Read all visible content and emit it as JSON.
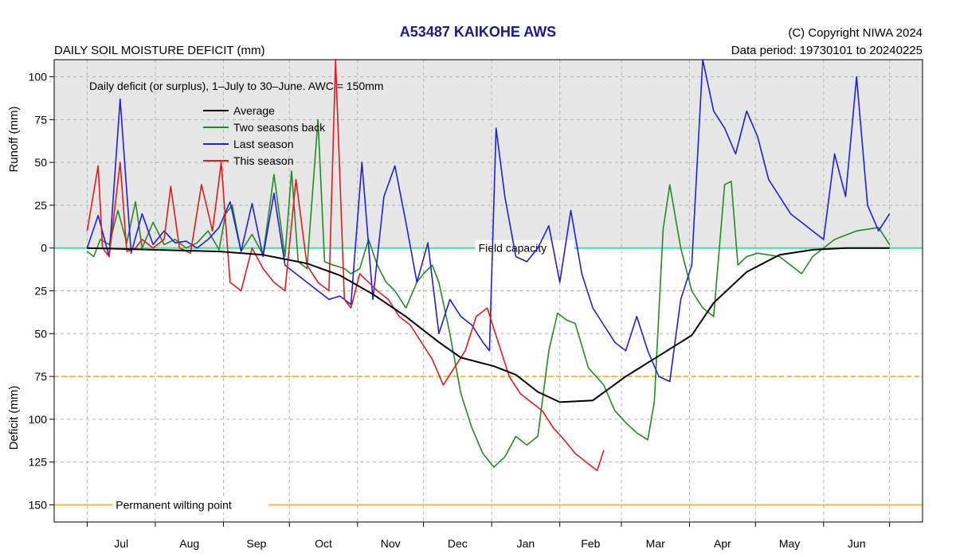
{
  "header": {
    "title": "A53487  KAIKOHE AWS",
    "copyright": "(C) Copyright NIWA  2024",
    "data_period": "Data period:  19730101  to  20240225",
    "chart_heading": "DAILY SOIL MOISTURE DEFICIT (mm)"
  },
  "colors": {
    "average": "#000000",
    "two_seasons_back": "#228b22",
    "last_season": "#1f1fdd",
    "this_season": "#e31a1c",
    "field_capacity": "#44e4a0",
    "permanent_wilting_point": "#f4b840",
    "awc_line": "#f4b840",
    "upper_panel_fill": "#e6e6e6"
  },
  "chart_data": {
    "type": "line",
    "subtitle": "Daily deficit (or surplus), 1–July to 30–June.  AWC = 150mm",
    "y_upper_label": "Runoff (mm)",
    "y_lower_label": "Deficit (mm)",
    "ylim": [
      -110,
      160
    ],
    "xlim": [
      -15,
      380
    ],
    "grid": true,
    "legend_position": "top-left",
    "y_ticks": [
      {
        "value": -100,
        "label": "100"
      },
      {
        "value": -75,
        "label": "75"
      },
      {
        "value": -50,
        "label": "50"
      },
      {
        "value": -25,
        "label": "25"
      },
      {
        "value": 0,
        "label": "0"
      },
      {
        "value": 25,
        "label": "25"
      },
      {
        "value": 50,
        "label": "50"
      },
      {
        "value": 75,
        "label": "75"
      },
      {
        "value": 100,
        "label": "100"
      },
      {
        "value": 125,
        "label": "125"
      },
      {
        "value": 150,
        "label": "150"
      }
    ],
    "months": [
      {
        "label": "Jul",
        "mid": 15.5
      },
      {
        "label": "Aug",
        "mid": 46.5
      },
      {
        "label": "Sep",
        "mid": 77
      },
      {
        "label": "Oct",
        "mid": 107.5
      },
      {
        "label": "Nov",
        "mid": 138
      },
      {
        "label": "Dec",
        "mid": 168.5
      },
      {
        "label": "Jan",
        "mid": 199.5
      },
      {
        "label": "Feb",
        "mid": 229
      },
      {
        "label": "Mar",
        "mid": 258.5
      },
      {
        "label": "Apr",
        "mid": 289
      },
      {
        "label": "May",
        "mid": 319.5
      },
      {
        "label": "Jun",
        "mid": 350
      }
    ],
    "month_boundaries": [
      0,
      31,
      62,
      92,
      123,
      153,
      184,
      215,
      243,
      274,
      304,
      335,
      365
    ],
    "reference_lines": [
      {
        "name": "Field capacity",
        "value": 0,
        "style": "solid",
        "color_key": "field_capacity"
      },
      {
        "name": "",
        "value": 75,
        "style": "dashed",
        "color_key": "awc_line"
      },
      {
        "name": "Permanent wilting point",
        "value": 150,
        "style": "solid",
        "color_key": "permanent_wilting_point"
      }
    ],
    "series": [
      {
        "name": "Average",
        "color_key": "average",
        "x": [
          0,
          30,
          60,
          80,
          100,
          115,
          130,
          145,
          160,
          170,
          185,
          195,
          205,
          215,
          230,
          245,
          260,
          275,
          285,
          300,
          315,
          330,
          345,
          365
        ],
        "y": [
          0,
          1,
          2,
          4,
          9,
          16,
          27,
          40,
          55,
          64,
          69,
          74,
          84,
          90,
          89,
          75,
          63,
          51,
          32,
          14,
          4,
          1,
          0,
          0
        ]
      },
      {
        "name": "Two seasons back",
        "color_key": "two_seasons_back",
        "x": [
          0,
          3,
          6,
          10,
          14,
          18,
          22,
          25,
          30,
          35,
          40,
          45,
          50,
          55,
          60,
          63,
          66,
          70,
          75,
          80,
          85,
          90,
          93,
          96,
          100,
          105,
          108,
          112,
          117,
          120,
          124,
          128,
          132,
          136,
          140,
          145,
          150,
          153,
          157,
          160,
          165,
          170,
          175,
          180,
          185,
          190,
          195,
          200,
          205,
          210,
          214,
          218,
          222,
          228,
          235,
          240,
          245,
          250,
          255,
          258,
          262,
          265,
          270,
          275,
          280,
          285,
          290,
          293,
          296,
          300,
          305,
          310,
          315,
          320,
          325,
          330,
          340,
          350,
          360,
          365
        ],
        "y": [
          2,
          5,
          -5,
          -2,
          -22,
          -3,
          -27,
          0,
          -15,
          -2,
          -5,
          0,
          -3,
          -10,
          1,
          -20,
          -25,
          2,
          -8,
          4,
          -43,
          5,
          -45,
          8,
          12,
          -75,
          8,
          10,
          12,
          15,
          12,
          -5,
          10,
          20,
          25,
          35,
          20,
          15,
          10,
          20,
          50,
          85,
          105,
          120,
          128,
          122,
          110,
          115,
          110,
          60,
          38,
          42,
          44,
          70,
          80,
          95,
          102,
          108,
          112,
          90,
          -11,
          -37,
          0,
          25,
          35,
          40,
          -37,
          -39,
          10,
          5,
          3,
          4,
          5,
          10,
          15,
          5,
          -5,
          -10,
          -12,
          -2
        ]
      },
      {
        "name": "Last season",
        "color_key": "last_season",
        "x": [
          0,
          5,
          10,
          15,
          20,
          25,
          30,
          35,
          40,
          45,
          50,
          55,
          60,
          65,
          70,
          75,
          80,
          85,
          90,
          95,
          100,
          105,
          110,
          115,
          120,
          125,
          130,
          135,
          140,
          145,
          150,
          155,
          160,
          165,
          170,
          175,
          180,
          183,
          186,
          190,
          195,
          200,
          205,
          210,
          215,
          220,
          225,
          230,
          235,
          240,
          245,
          250,
          255,
          260,
          265,
          270,
          275,
          280,
          285,
          290,
          295,
          300,
          305,
          310,
          315,
          320,
          325,
          330,
          335,
          340,
          345,
          350,
          355,
          360,
          365
        ],
        "y": [
          0,
          -19,
          5,
          -87,
          3,
          -20,
          -2,
          -10,
          -3,
          -4,
          0,
          -5,
          -12,
          -27,
          2,
          -26,
          5,
          -32,
          10,
          15,
          20,
          25,
          30,
          28,
          33,
          -50,
          30,
          -30,
          -48,
          -15,
          20,
          -3,
          50,
          30,
          40,
          45,
          55,
          60,
          -70,
          -30,
          5,
          8,
          0,
          -13,
          20,
          -22,
          15,
          35,
          45,
          55,
          60,
          40,
          60,
          75,
          78,
          30,
          10,
          -110,
          -80,
          -70,
          -55,
          -80,
          -65,
          -40,
          -30,
          -20,
          -15,
          -10,
          -5,
          -55,
          -30,
          -100,
          -25,
          -10,
          -20
        ]
      },
      {
        "name": "This season",
        "color_key": "this_season",
        "x": [
          0,
          5,
          7,
          10,
          15,
          18,
          22,
          25,
          30,
          35,
          38,
          42,
          47,
          52,
          57,
          61,
          65,
          70,
          75,
          80,
          85,
          90,
          95,
          100,
          105,
          110,
          113,
          117,
          120,
          124,
          128,
          132,
          137,
          142,
          147,
          152,
          157,
          162,
          167,
          172,
          177,
          182,
          187,
          192,
          197,
          202,
          207,
          212,
          217,
          222,
          227,
          232,
          235
        ],
        "y": [
          -10,
          -48,
          0,
          5,
          -50,
          2,
          0,
          -5,
          0,
          -5,
          -36,
          0,
          3,
          -37,
          -10,
          -50,
          20,
          25,
          0,
          12,
          20,
          25,
          -40,
          10,
          20,
          25,
          -110,
          30,
          35,
          15,
          20,
          25,
          30,
          40,
          45,
          55,
          65,
          80,
          70,
          60,
          40,
          35,
          55,
          75,
          85,
          90,
          95,
          105,
          112,
          120,
          125,
          130,
          118
        ]
      }
    ]
  }
}
